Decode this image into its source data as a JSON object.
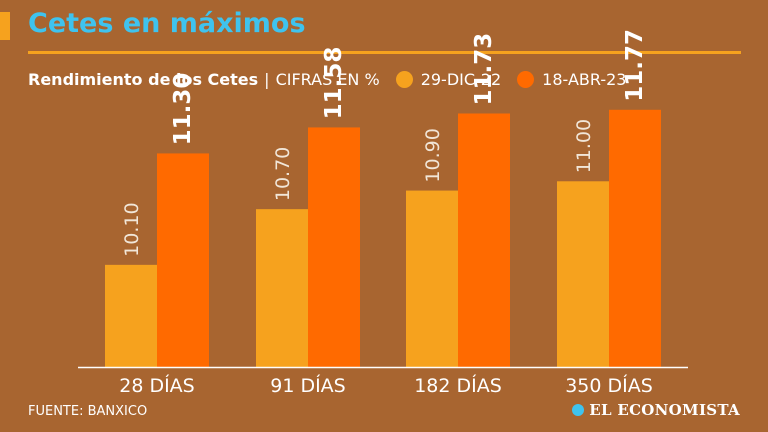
{
  "header": {
    "title": "Cetes en máximos"
  },
  "subtitle": {
    "label": "Rendimiento de los Cetes",
    "separator": "|",
    "units": "CIFRAS EN %"
  },
  "legend": [
    {
      "label": "29-DIC-22",
      "color": "#F6A21E"
    },
    {
      "label": "18-ABR-23",
      "color": "#FF6A00"
    }
  ],
  "chart_data": {
    "type": "bar",
    "title": "Rendimiento de los Cetes",
    "units": "CIFRAS EN %",
    "categories": [
      "28 DÍAS",
      "91 DÍAS",
      "182 DÍAS",
      "350 DÍAS"
    ],
    "series": [
      {
        "name": "29-DIC-22",
        "values": [
          10.1,
          10.7,
          10.9,
          11.0
        ],
        "labels": [
          "10.10",
          "10.70",
          "10.90",
          "11.00"
        ],
        "color": "#F6A21E"
      },
      {
        "name": "18-ABR-23",
        "values": [
          11.3,
          11.58,
          11.73,
          11.77
        ],
        "labels": [
          "11.30",
          "11.58",
          "11.73",
          "11.77"
        ],
        "color": "#FF6A00"
      }
    ],
    "ylim": [
      9.0,
      11.8
    ],
    "xlabel": "",
    "ylabel": "",
    "grid": false
  },
  "footer": {
    "source": "FUENTE: BANXICO",
    "logo": "EL ECONOMISTA"
  }
}
